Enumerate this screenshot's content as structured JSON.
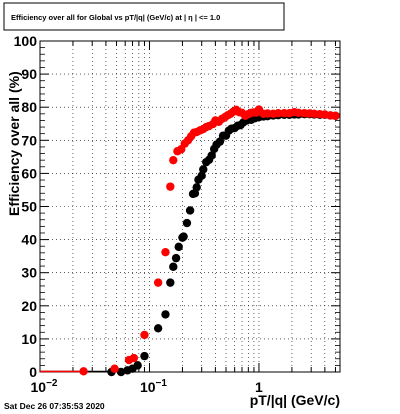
{
  "chart_data": {
    "type": "scatter",
    "title": "Efficiency over all for Global vs pT/|q| (GeV/c) at | η | <= 1.0",
    "xlabel": "pT/|q| (GeV/c)",
    "ylabel": "Efficiency over all (%)",
    "x_scale": "log",
    "xlim": [
      0.01,
      5.5
    ],
    "ylim": [
      0,
      100
    ],
    "x_tick_labels": [
      {
        "value": 0.01,
        "label": "10",
        "exp": "−2"
      },
      {
        "value": 0.1,
        "label": "10",
        "exp": "−1"
      },
      {
        "value": 1,
        "label": "1",
        "exp": ""
      }
    ],
    "y_tick_labels": [
      "0",
      "10",
      "20",
      "30",
      "40",
      "50",
      "60",
      "70",
      "80",
      "90",
      "100"
    ],
    "y_ticks": [
      0,
      10,
      20,
      30,
      40,
      50,
      60,
      70,
      80,
      90,
      100
    ],
    "grid": true,
    "series": [
      {
        "color": "#000000",
        "points": [
          [
            0.045,
            0.0
          ],
          [
            0.055,
            0.0
          ],
          [
            0.063,
            0.5
          ],
          [
            0.07,
            1.0
          ],
          [
            0.078,
            2.0
          ],
          [
            0.09,
            4.8
          ],
          [
            0.12,
            13.2
          ],
          [
            0.14,
            17.4
          ],
          [
            0.155,
            27.0
          ],
          [
            0.165,
            31.8
          ],
          [
            0.175,
            34.4
          ],
          [
            0.185,
            37.8
          ],
          [
            0.2,
            40.6
          ],
          [
            0.205,
            40.9
          ],
          [
            0.22,
            45.0
          ],
          [
            0.235,
            48.8
          ],
          [
            0.25,
            53.8
          ],
          [
            0.26,
            54.0
          ],
          [
            0.27,
            55.8
          ],
          [
            0.28,
            58.1
          ],
          [
            0.3,
            59.3
          ],
          [
            0.31,
            61.2
          ],
          [
            0.33,
            63.4
          ],
          [
            0.35,
            64.1
          ],
          [
            0.37,
            65.4
          ],
          [
            0.39,
            67.4
          ],
          [
            0.41,
            68.7
          ],
          [
            0.44,
            69.6
          ],
          [
            0.47,
            71.4
          ],
          [
            0.5,
            71.4
          ],
          [
            0.53,
            72.9
          ],
          [
            0.56,
            73.5
          ],
          [
            0.6,
            73.7
          ],
          [
            0.64,
            74.4
          ],
          [
            0.68,
            74.6
          ],
          [
            0.72,
            75.4
          ],
          [
            0.78,
            76.0
          ],
          [
            0.85,
            76.2
          ],
          [
            0.92,
            76.7
          ],
          [
            1.0,
            77.0
          ],
          [
            1.1,
            77.2
          ],
          [
            1.2,
            77.3
          ],
          [
            1.35,
            77.5
          ],
          [
            1.5,
            77.6
          ],
          [
            1.7,
            77.7
          ],
          [
            1.9,
            77.7
          ],
          [
            2.1,
            77.8
          ],
          [
            2.3,
            77.8
          ],
          [
            2.6,
            77.9
          ],
          [
            2.9,
            77.9
          ],
          [
            3.2,
            77.8
          ],
          [
            3.6,
            77.7
          ],
          [
            4.0,
            77.7
          ],
          [
            4.5,
            77.5
          ],
          [
            5.0,
            77.4
          ]
        ]
      },
      {
        "color": "#ff0000",
        "points": [
          [
            0.025,
            0.2
          ],
          [
            0.048,
            1.0
          ],
          [
            0.065,
            3.6
          ],
          [
            0.072,
            4.2
          ],
          [
            0.09,
            11.2
          ],
          [
            0.12,
            27.0
          ],
          [
            0.14,
            36.2
          ],
          [
            0.155,
            56.0
          ],
          [
            0.165,
            64.0
          ],
          [
            0.18,
            66.7
          ],
          [
            0.195,
            67.3
          ],
          [
            0.21,
            69.0
          ],
          [
            0.225,
            70.0
          ],
          [
            0.24,
            71.2
          ],
          [
            0.255,
            72.3
          ],
          [
            0.27,
            72.5
          ],
          [
            0.29,
            73.0
          ],
          [
            0.31,
            73.4
          ],
          [
            0.33,
            74.0
          ],
          [
            0.35,
            74.3
          ],
          [
            0.38,
            74.9
          ],
          [
            0.4,
            76.0
          ],
          [
            0.43,
            75.6
          ],
          [
            0.46,
            76.5
          ],
          [
            0.49,
            77.0
          ],
          [
            0.52,
            77.6
          ],
          [
            0.55,
            78.0
          ],
          [
            0.58,
            78.6
          ],
          [
            0.62,
            79.2
          ],
          [
            0.66,
            78.5
          ],
          [
            0.7,
            78.3
          ],
          [
            0.75,
            77.4
          ],
          [
            0.8,
            77.9
          ],
          [
            0.85,
            78.3
          ],
          [
            0.9,
            78.4
          ],
          [
            0.95,
            78.4
          ],
          [
            1.0,
            79.3
          ],
          [
            1.1,
            78.0
          ],
          [
            1.2,
            78.1
          ],
          [
            1.35,
            78.0
          ],
          [
            1.5,
            78.2
          ],
          [
            1.7,
            78.2
          ],
          [
            1.9,
            78.2
          ],
          [
            2.1,
            78.5
          ],
          [
            2.3,
            78.3
          ],
          [
            2.6,
            78.2
          ],
          [
            2.9,
            78.1
          ],
          [
            3.2,
            78.0
          ],
          [
            3.6,
            77.9
          ],
          [
            4.0,
            77.8
          ],
          [
            4.5,
            77.5
          ],
          [
            5.0,
            77.4
          ]
        ]
      }
    ]
  },
  "footer": {
    "timestamp": "Sat Dec 26 07:35:53 2020"
  }
}
